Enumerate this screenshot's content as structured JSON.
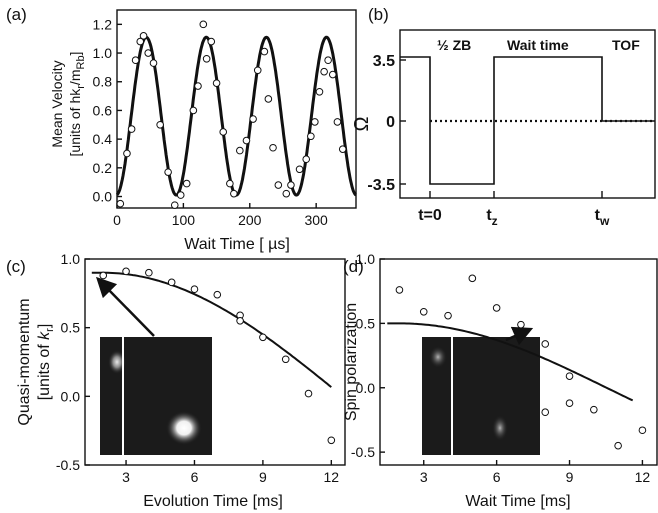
{
  "chart_data": [
    {
      "panel": "(a)",
      "type": "scatter",
      "xlabel": "Wait Time [ µs]",
      "ylabel": "Mean Velocity",
      "ylabel_line2_prefix": "[units of ",
      "ylabel_line2_hk": "hk",
      "ylabel_line2_sub_r": "r",
      "ylabel_line2_m": "/m",
      "ylabel_line2_sub_rb": "Rb",
      "ylabel_line2_suffix": "]",
      "xlim": [
        0,
        360
      ],
      "ylim": [
        -0.08,
        1.3
      ],
      "xticks": [
        0,
        100,
        200,
        300
      ],
      "yticks": [
        0.0,
        0.2,
        0.4,
        0.6,
        0.8,
        1.0,
        1.2
      ],
      "ytick_labels": [
        "0.0",
        "0.2",
        "0.4",
        "0.6",
        "0.8",
        "1.0",
        "1.2"
      ],
      "series": [
        {
          "kind": "points",
          "x": [
            5,
            15,
            22,
            28,
            35,
            40,
            47,
            55,
            65,
            77,
            87,
            96,
            105,
            115,
            122,
            130,
            135,
            142,
            150,
            160,
            170,
            176,
            185,
            195,
            205,
            212,
            222,
            228,
            235,
            243,
            255,
            262,
            275,
            285,
            292,
            298,
            305,
            312,
            318,
            325,
            332,
            340
          ],
          "y": [
            -0.05,
            0.3,
            0.47,
            0.95,
            1.08,
            1.12,
            1.0,
            0.93,
            0.5,
            0.17,
            -0.06,
            0.01,
            0.09,
            0.6,
            0.77,
            1.2,
            0.96,
            1.08,
            0.79,
            0.45,
            0.09,
            0.02,
            0.32,
            0.39,
            0.54,
            0.88,
            1.01,
            0.68,
            0.34,
            0.08,
            0.02,
            0.08,
            0.19,
            0.26,
            0.42,
            0.52,
            0.73,
            0.87,
            0.95,
            0.85,
            0.52,
            0.33
          ]
        },
        {
          "kind": "fit",
          "model": "0.56 - 0.55*cos(2*pi*(x-44)/90.5) shifted so peaks sit at ~44, 134, 224, 315",
          "amplitude": 0.55,
          "offset": 0.56,
          "period": 90.5,
          "peak_at": 44
        }
      ]
    },
    {
      "panel": "(b)",
      "type": "line",
      "yticks": [
        "3.5",
        "0",
        "-3.5"
      ],
      "ylabel": "Ω",
      "xticks": [
        "t=0",
        "t",
        "t"
      ],
      "xtick_subs": [
        "",
        "z",
        "w"
      ],
      "annotations": [
        "½ ZB",
        "Wait time",
        "TOF"
      ],
      "segments": [
        {
          "t": 0,
          "value": 3.5
        },
        {
          "t": 1,
          "value": -3.5
        },
        {
          "t": 2,
          "value": 3.5
        },
        {
          "t": 3,
          "value": 0
        },
        {
          "t": 4,
          "value": 0
        }
      ],
      "zero_line": "dotted"
    },
    {
      "panel": "(c)",
      "type": "scatter",
      "xlabel": "Evolution Time [ms]",
      "ylabel": "Quasi-momentum",
      "ylabel_line2_prefix": "[units of ",
      "ylabel_line2_k": "k",
      "ylabel_line2_sub": "r",
      "ylabel_line2_suffix": "]",
      "xlim": [
        1.2,
        12.6
      ],
      "ylim": [
        -0.5,
        1.0
      ],
      "xticks": [
        3,
        6,
        9,
        12
      ],
      "yticks": [
        -0.5,
        0.0,
        0.5,
        1.0
      ],
      "ytick_labels": [
        "-0.5",
        "0.0",
        "0.5",
        "1.0"
      ],
      "series": [
        {
          "kind": "points",
          "x": [
            2,
            3,
            4,
            5,
            6,
            7,
            8,
            8,
            9,
            10,
            11,
            12
          ],
          "y": [
            0.88,
            0.91,
            0.9,
            0.83,
            0.78,
            0.74,
            0.59,
            0.55,
            0.43,
            0.27,
            0.02,
            -0.32
          ]
        },
        {
          "kind": "fit",
          "model": "A*cos(w*(x-2))",
          "A": 0.9,
          "w": 0.1496
        }
      ]
    },
    {
      "panel": "(d)",
      "type": "scatter",
      "xlabel": "Wait Time [ms]",
      "ylabel": "Spin polarization",
      "xlim": [
        1.2,
        12.6
      ],
      "ylim": [
        -0.6,
        1.0
      ],
      "xticks": [
        3,
        6,
        9,
        12
      ],
      "yticks": [
        -0.5,
        0.0,
        0.5,
        1.0
      ],
      "ytick_labels": [
        "-0.5",
        "0.0",
        "0.5",
        "1.0"
      ],
      "series": [
        {
          "kind": "points",
          "x": [
            2,
            3,
            4,
            5,
            6,
            7,
            8,
            8,
            9,
            9,
            10,
            11,
            12
          ],
          "y": [
            0.76,
            0.59,
            0.56,
            0.85,
            0.62,
            0.49,
            0.34,
            -0.19,
            0.09,
            -0.12,
            -0.17,
            -0.45,
            -0.33
          ]
        },
        {
          "kind": "fit",
          "model": "A*cos(w*(x-2))",
          "A": 0.5,
          "w": 0.1843
        }
      ]
    }
  ],
  "panels": {
    "a": {
      "tag": "(a)"
    },
    "b": {
      "tag": "(b)"
    },
    "c": {
      "tag": "(c)"
    },
    "d": {
      "tag": "(d)"
    }
  }
}
